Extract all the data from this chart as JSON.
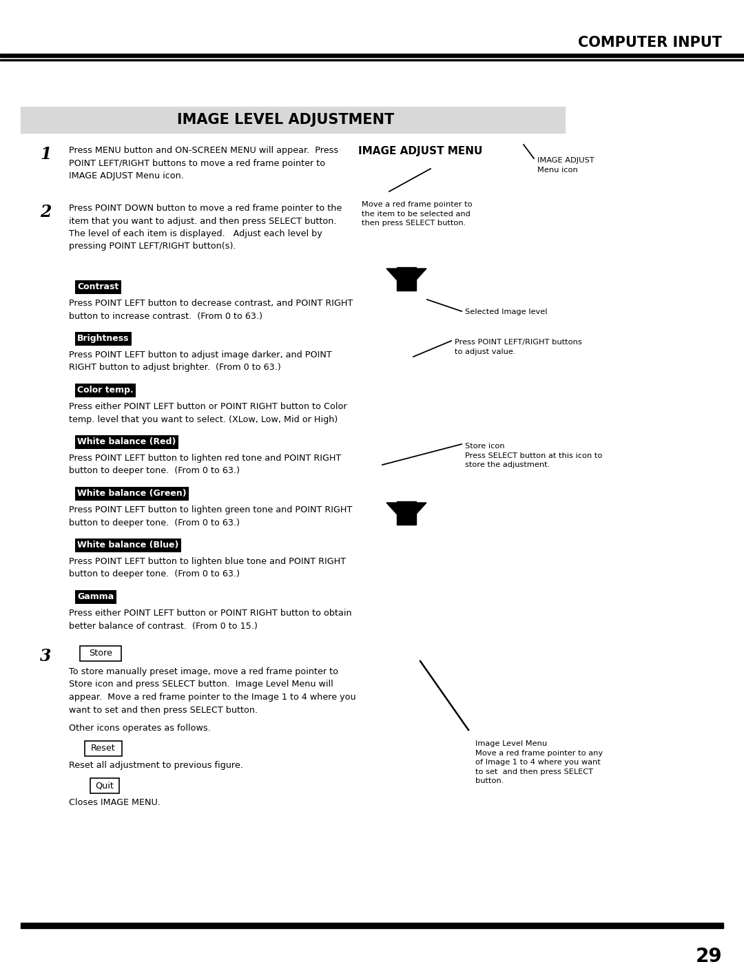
{
  "page_title": "COMPUTER INPUT",
  "section_title": "IMAGE LEVEL ADJUSTMENT",
  "bg_color": "#ffffff",
  "section_bg_color": "#d8d8d8",
  "page_number": "29",
  "step1_num": "1",
  "step1_text": "Press MENU button and ON-SCREEN MENU will appear.  Press\nPOINT LEFT/RIGHT buttons to move a red frame pointer to\nIMAGE ADJUST Menu icon.",
  "step2_num": "2",
  "step2_text": "Press POINT DOWN button to move a red frame pointer to the\nitem that you want to adjust. and then press SELECT button.\nThe level of each item is displayed.   Adjust each level by\npressing POINT LEFT/RIGHT button(s).",
  "step3_num": "3",
  "step3_store_label": "Store",
  "step3_text": "To store manually preset image, move a red frame pointer to\nStore icon and press SELECT button.  Image Level Menu will\nappear.  Move a red frame pointer to the Image 1 to 4 where you\nwant to set and then press SELECT button.",
  "other_icons_text": "Other icons operates as follows.",
  "reset_label": "Reset",
  "reset_desc": "Reset all adjustment to previous figure.",
  "quit_label": "Quit",
  "quit_desc": "Closes IMAGE MENU.",
  "menu_heading": "IMAGE ADJUST MENU",
  "label1_text": "Move a red frame pointer to\nthe item to be selected and\nthen press SELECT button.",
  "label1_annotation": "IMAGE ADJUST\nMenu icon",
  "label2_annotation": "Selected Image level",
  "label3_text": "Press POINT LEFT/RIGHT buttons\nto adjust value.",
  "label4_text": "Store icon\nPress SELECT button at this icon to\nstore the adjustment.",
  "label5_text": "Image Level Menu\nMove a red frame pointer to any\nof Image 1 to 4 where you want\nto set  and then press SELECT\nbutton.",
  "items": [
    {
      "label": "Contrast",
      "desc": "Press POINT LEFT button to decrease contrast, and POINT RIGHT\nbutton to increase contrast.  (From 0 to 63.)"
    },
    {
      "label": "Brightness",
      "desc": "Press POINT LEFT button to adjust image darker, and POINT\nRIGHT button to adjust brighter.  (From 0 to 63.)"
    },
    {
      "label": "Color temp.",
      "desc": "Press either POINT LEFT button or POINT RIGHT button to Color\ntemp. level that you want to select. (XLow, Low, Mid or High)"
    },
    {
      "label": "White balance (Red)",
      "desc": "Press POINT LEFT button to lighten red tone and POINT RIGHT\nbutton to deeper tone.  (From 0 to 63.)"
    },
    {
      "label": "White balance (Green)",
      "desc": "Press POINT LEFT button to lighten green tone and POINT RIGHT\nbutton to deeper tone.  (From 0 to 63.)"
    },
    {
      "label": "White balance (Blue)",
      "desc": "Press POINT LEFT button to lighten blue tone and POINT RIGHT\nbutton to deeper tone.  (From 0 to 63.)"
    },
    {
      "label": "Gamma",
      "desc": "Press either POINT LEFT button or POINT RIGHT button to obtain\nbetter balance of contrast.  (From 0 to 15.)"
    }
  ]
}
